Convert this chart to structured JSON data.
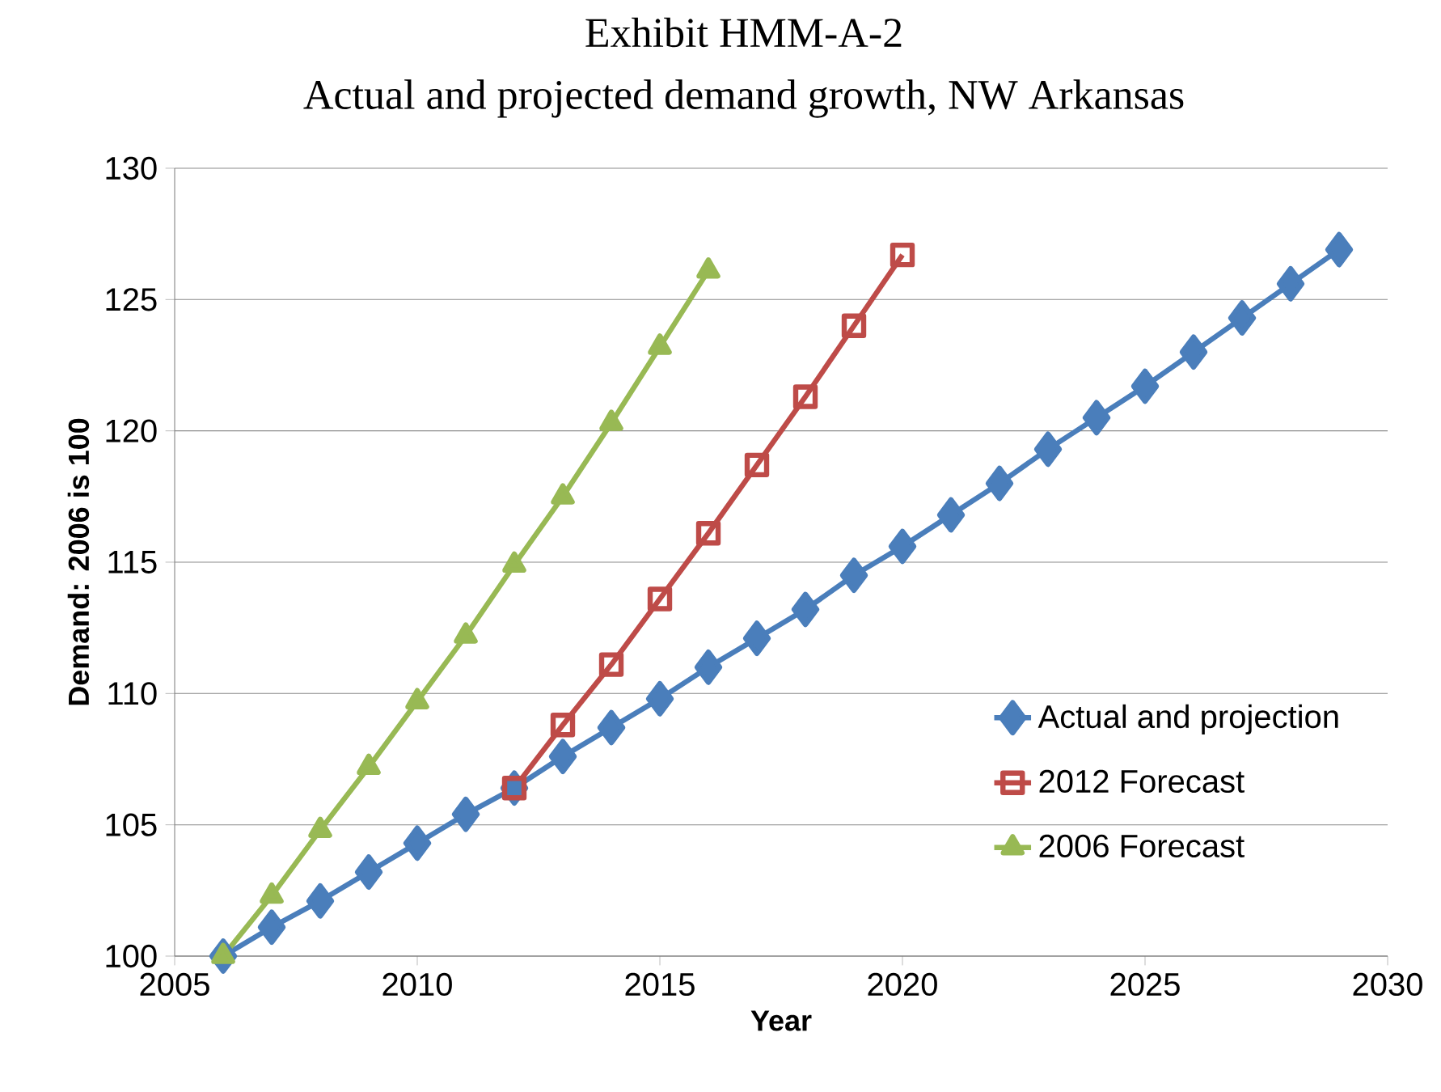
{
  "chart_data": {
    "type": "line",
    "title": "Exhibit HMM-A-2",
    "subtitle": "Actual and projected demand growth, NW Arkansas",
    "xlabel": "Year",
    "ylabel": "Demand: 2006 is 100",
    "xlim": [
      2005,
      2030
    ],
    "xticks": [
      2005,
      2010,
      2015,
      2020,
      2025,
      2030
    ],
    "ylim": [
      100,
      130
    ],
    "yticks": [
      100,
      105,
      110,
      115,
      120,
      125,
      130
    ],
    "grid": "y",
    "legend": "bottom right",
    "line_style": "solid",
    "series": [
      {
        "name": "Actual and projection",
        "color": "#4a7ebb",
        "marker": "diamond",
        "x": [
          2006,
          2007,
          2008,
          2009,
          2010,
          2011,
          2012,
          2013,
          2014,
          2015,
          2016,
          2017,
          2018,
          2019,
          2020,
          2021,
          2022,
          2023,
          2024,
          2025,
          2026,
          2027,
          2028,
          2029
        ],
        "values": [
          100,
          101.1,
          102.1,
          103.2,
          104.3,
          105.4,
          106.4,
          107.6,
          108.7,
          109.8,
          111.0,
          112.1,
          113.2,
          114.5,
          115.6,
          116.8,
          118.0,
          119.3,
          120.5,
          121.7,
          123.0,
          124.3,
          125.6,
          126.9
        ]
      },
      {
        "name": "2012 Forecast",
        "color": "#be4b48",
        "marker": "square",
        "x": [
          2012,
          2013,
          2014,
          2015,
          2016,
          2017,
          2018,
          2019,
          2020
        ],
        "values": [
          106.4,
          108.8,
          111.1,
          113.6,
          116.1,
          118.7,
          121.3,
          124.0,
          126.7
        ]
      },
      {
        "name": "2006 Forecast",
        "color": "#98b954",
        "marker": "triangle",
        "x": [
          2006,
          2007,
          2008,
          2009,
          2010,
          2011,
          2012,
          2013,
          2014,
          2015,
          2016
        ],
        "values": [
          100,
          102.3,
          104.8,
          107.2,
          109.7,
          112.2,
          114.9,
          117.5,
          120.3,
          123.2,
          126.1
        ]
      }
    ]
  }
}
